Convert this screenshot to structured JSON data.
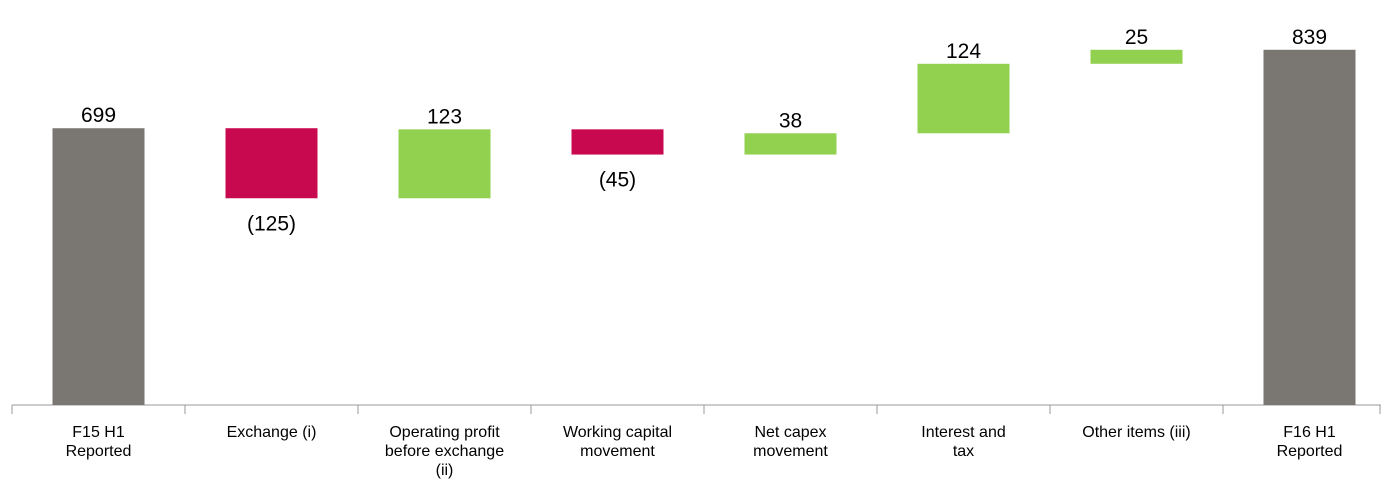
{
  "chart_data": {
    "type": "waterfall",
    "categories": [
      "F15 H1 Reported",
      "Exchange (i)",
      "Operating profit before exchange (ii)",
      "Working capital movement",
      "Net capex movement",
      "Interest and tax",
      "Other items (iii)",
      "F16 H1 Reported"
    ],
    "values": [
      699,
      -125,
      123,
      -45,
      38,
      124,
      25,
      839
    ],
    "value_labels": [
      "699",
      "(125)",
      "123",
      "(45)",
      "38",
      "124",
      "25",
      "839"
    ],
    "measure": [
      "absolute",
      "relative",
      "relative",
      "relative",
      "relative",
      "relative",
      "relative",
      "total"
    ],
    "colors": {
      "total": "#7a7672",
      "increase": "#92d050",
      "decrease": "#c8084f"
    },
    "ylim": [
      205,
      910
    ]
  }
}
